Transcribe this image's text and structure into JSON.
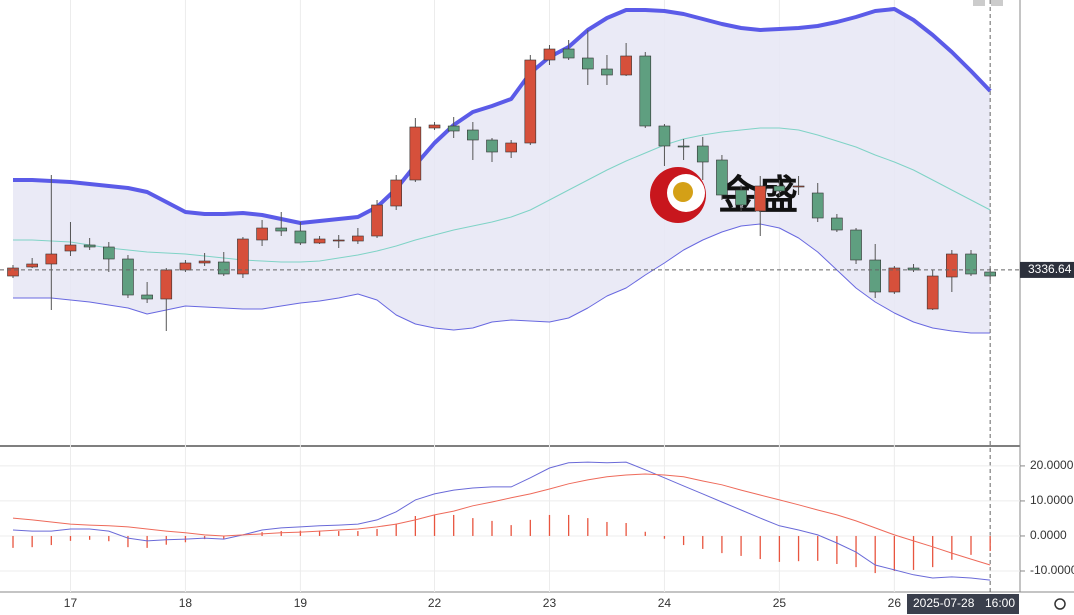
{
  "chart_data": [
    {
      "type": "candlestick",
      "watermark": "金盛",
      "last_price": 3336.64,
      "ylim": [
        3249.1,
        3471.6
      ],
      "up_color": "#d6503b",
      "down_color": "#5f9f80",
      "xticks": [
        {
          "value": 3,
          "label": "17"
        },
        {
          "value": 9,
          "label": "18"
        },
        {
          "value": 15,
          "label": "19"
        },
        {
          "value": 22,
          "label": "22"
        },
        {
          "value": 28,
          "label": "23"
        },
        {
          "value": 34,
          "label": "24"
        },
        {
          "value": 40,
          "label": "25"
        },
        {
          "value": 46,
          "label": "26"
        }
      ],
      "cursor": {
        "date": "2025-07-28",
        "time": "16:00",
        "index": 51
      },
      "open": [
        3333.6,
        3338.1,
        3339.6,
        3346.1,
        3349.1,
        3348.1,
        3342.1,
        3324.1,
        3322.1,
        3336.6,
        3340.1,
        3340.6,
        3334.6,
        3351.6,
        3357.6,
        3356.1,
        3350.1,
        3351.1,
        3351.1,
        3353.6,
        3368.6,
        3381.6,
        3407.6,
        3408.6,
        3406.6,
        3401.6,
        3395.6,
        3400.1,
        3441.6,
        3447.1,
        3442.6,
        3437.1,
        3434.1,
        3443.6,
        3408.6,
        3398.6,
        3398.6,
        3391.6,
        3376.6,
        3366.1,
        3378.6,
        3378.1,
        3375.1,
        3362.6,
        3356.6,
        3341.6,
        3325.6,
        3337.6,
        3317.1,
        3333.1,
        3344.6,
        3335.6
      ],
      "high": [
        3339.1,
        3342.6,
        3384.1,
        3360.6,
        3352.6,
        3350.6,
        3344.1,
        3330.6,
        3337.6,
        3341.6,
        3345.1,
        3345.6,
        3353.1,
        3361.6,
        3365.6,
        3360.6,
        3353.6,
        3354.1,
        3357.6,
        3371.6,
        3384.1,
        3412.6,
        3410.6,
        3413.1,
        3410.6,
        3402.6,
        3401.6,
        3444.1,
        3449.1,
        3451.6,
        3456.6,
        3444.1,
        3450.1,
        3445.6,
        3409.6,
        3402.1,
        3403.1,
        3394.1,
        3379.1,
        3383.6,
        3381.6,
        3383.6,
        3380.1,
        3364.6,
        3357.6,
        3349.6,
        3338.6,
        3339.6,
        3336.6,
        3346.6,
        3346.6,
        3337.6
      ],
      "low": [
        3332.6,
        3337.6,
        3316.6,
        3343.6,
        3346.6,
        3335.6,
        3322.6,
        3320.1,
        3306.1,
        3335.6,
        3338.6,
        3333.6,
        3332.6,
        3348.6,
        3353.6,
        3349.1,
        3349.6,
        3347.6,
        3349.6,
        3352.6,
        3366.6,
        3380.6,
        3406.6,
        3402.6,
        3391.6,
        3390.6,
        3392.6,
        3399.1,
        3439.1,
        3441.6,
        3429.1,
        3429.1,
        3433.6,
        3407.6,
        3388.6,
        3391.6,
        3381.6,
        3371.6,
        3365.6,
        3353.6,
        3373.6,
        3374.1,
        3360.6,
        3355.6,
        3339.6,
        3322.6,
        3324.6,
        3335.6,
        3316.6,
        3325.6,
        3333.6,
        3331.6
      ],
      "close": [
        3337.6,
        3339.6,
        3344.6,
        3349.1,
        3348.1,
        3342.1,
        3324.1,
        3322.1,
        3336.6,
        3340.1,
        3341.1,
        3334.6,
        3352.1,
        3357.6,
        3356.1,
        3350.1,
        3352.1,
        3351.6,
        3353.6,
        3369.1,
        3381.6,
        3408.1,
        3409.1,
        3406.1,
        3401.6,
        3395.6,
        3400.1,
        3441.6,
        3447.1,
        3442.6,
        3437.1,
        3434.1,
        3443.6,
        3408.6,
        3398.6,
        3398.1,
        3390.6,
        3374.1,
        3369.1,
        3378.6,
        3376.1,
        3378.6,
        3362.6,
        3356.6,
        3341.6,
        3325.6,
        3337.6,
        3336.6,
        3333.6,
        3344.6,
        3334.6,
        3333.6
      ],
      "bands": [
        {
          "color": "#5b5be8",
          "width": 4,
          "values": [
            3381.6,
            3381.6,
            3381.1,
            3380.6,
            3379.6,
            3378.6,
            3377.6,
            3375.6,
            3370.6,
            3365.6,
            3364.6,
            3364.6,
            3365.1,
            3364.1,
            3362.1,
            3360.1,
            3361.1,
            3362.1,
            3363.1,
            3368.1,
            3377.1,
            3389.1,
            3400.1,
            3409.1,
            3415.6,
            3418.6,
            3422.1,
            3435.1,
            3443.1,
            3448.1,
            3456.6,
            3462.6,
            3466.6,
            3466.6,
            3466.1,
            3464.6,
            3462.1,
            3459.6,
            3457.6,
            3456.6,
            3457.1,
            3457.6,
            3458.6,
            3460.6,
            3463.1,
            3466.1,
            3467.1,
            3461.6,
            3454.1,
            3445.6,
            3436.1,
            3426.1
          ]
        },
        {
          "color": "#7fd3c6",
          "width": 1,
          "values": [
            3351.6,
            3351.6,
            3351.1,
            3350.6,
            3349.1,
            3347.6,
            3346.6,
            3345.6,
            3345.1,
            3344.6,
            3343.6,
            3342.6,
            3341.6,
            3341.1,
            3340.6,
            3340.6,
            3341.1,
            3342.6,
            3344.1,
            3346.1,
            3348.6,
            3351.6,
            3354.1,
            3356.6,
            3358.6,
            3360.6,
            3363.1,
            3366.6,
            3371.6,
            3376.6,
            3381.6,
            3386.6,
            3391.1,
            3395.1,
            3399.1,
            3402.1,
            3404.1,
            3405.6,
            3406.6,
            3407.6,
            3407.6,
            3406.6,
            3404.1,
            3401.1,
            3398.1,
            3394.1,
            3390.6,
            3386.6,
            3381.6,
            3376.6,
            3371.6,
            3366.6
          ]
        },
        {
          "color": "#6868e0",
          "width": 1,
          "values": [
            3322.6,
            3322.6,
            3322.6,
            3321.6,
            3320.6,
            3319.1,
            3317.6,
            3314.6,
            3316.6,
            3318.6,
            3318.1,
            3317.6,
            3317.1,
            3317.1,
            3318.6,
            3320.1,
            3321.1,
            3322.6,
            3324.6,
            3321.6,
            3314.1,
            3309.6,
            3307.6,
            3306.6,
            3307.6,
            3310.6,
            3311.6,
            3311.1,
            3310.6,
            3312.6,
            3317.6,
            3323.6,
            3327.6,
            3334.1,
            3340.1,
            3346.6,
            3351.6,
            3355.6,
            3358.6,
            3359.6,
            3357.6,
            3352.6,
            3345.6,
            3336.6,
            3327.6,
            3320.6,
            3315.1,
            3310.6,
            3307.6,
            3306.1,
            3305.1,
            3305.1
          ]
        }
      ],
      "band_fill": "#e6e6f4"
    },
    {
      "type": "macd",
      "ylim": [
        -16,
        25.4
      ],
      "yticks": [
        {
          "value": 20,
          "label": "20.0000"
        },
        {
          "value": 10,
          "label": "10.0000"
        },
        {
          "value": 0,
          "label": "0.0000"
        },
        {
          "value": -10,
          "label": "-10.0000"
        }
      ],
      "grid": true,
      "series": [
        {
          "color": "#6a6ad8",
          "values": [
            1.7,
            1.4,
            1.4,
            2.0,
            2.0,
            1.4,
            -0.6,
            -1.4,
            -1.1,
            -0.9,
            -0.6,
            -0.9,
            0.3,
            1.7,
            2.3,
            2.6,
            2.9,
            3.1,
            3.4,
            4.6,
            6.9,
            10.3,
            12.0,
            13.1,
            13.7,
            14.0,
            14.0,
            16.6,
            19.4,
            20.9,
            21.1,
            20.9,
            21.1,
            18.9,
            16.6,
            14.3,
            12.0,
            9.7,
            7.4,
            5.1,
            2.9,
            1.7,
            0.3,
            -2.0,
            -4.6,
            -8.3,
            -9.7,
            -11.1,
            -12.0,
            -11.7,
            -12.0,
            -12.6
          ]
        },
        {
          "color": "#ee6a5a",
          "values": [
            5.1,
            4.6,
            4.0,
            3.4,
            3.1,
            2.9,
            2.6,
            2.0,
            1.4,
            0.9,
            0.3,
            0.0,
            0.3,
            0.6,
            0.9,
            1.1,
            1.4,
            1.7,
            2.0,
            2.6,
            3.4,
            4.6,
            6.0,
            7.1,
            8.6,
            9.7,
            10.9,
            12.0,
            13.4,
            14.9,
            16.0,
            16.9,
            17.4,
            17.7,
            17.4,
            16.9,
            15.7,
            14.6,
            13.1,
            11.7,
            10.3,
            8.9,
            7.4,
            6.0,
            4.3,
            2.3,
            0.3,
            -1.4,
            -3.1,
            -4.9,
            -6.6,
            -8.3
          ]
        }
      ],
      "histogram": {
        "color": "#e8553f",
        "values": [
          -3.4,
          -3.2,
          -2.6,
          -1.4,
          -1.1,
          -1.5,
          -3.2,
          -3.4,
          -2.5,
          -1.8,
          -0.9,
          -0.9,
          0,
          1.1,
          1.4,
          1.5,
          1.5,
          1.4,
          1.4,
          2.0,
          3.5,
          5.7,
          6.0,
          6.0,
          5.1,
          4.3,
          3.1,
          4.6,
          6.0,
          6.0,
          5.1,
          4.0,
          3.7,
          1.2,
          -0.8,
          -2.6,
          -3.7,
          -4.9,
          -5.7,
          -6.6,
          -7.4,
          -7.2,
          -7.1,
          -8.0,
          -8.9,
          -10.6,
          -10.0,
          -9.7,
          -8.9,
          -6.8,
          -5.4,
          -4.3
        ]
      }
    }
  ]
}
